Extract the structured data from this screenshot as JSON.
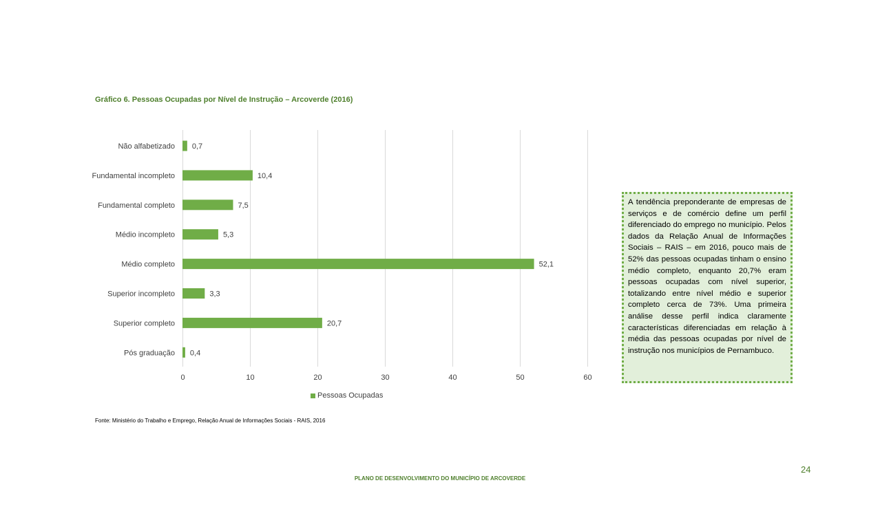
{
  "chart_data": {
    "type": "bar",
    "orientation": "horizontal",
    "title": "Gráfico 6. Pessoas Ocupadas por Nível de Instrução – Arcoverde (2016)",
    "categories": [
      "Não alfabetizado",
      "Fundamental incompleto",
      "Fundamental completo",
      "Médio incompleto",
      "Médio completo",
      "Superior incompleto",
      "Superior completo",
      "Pós graduação"
    ],
    "series": [
      {
        "name": "Pessoas Ocupadas",
        "values": [
          0.7,
          10.4,
          7.5,
          5.3,
          52.1,
          3.3,
          20.7,
          0.4
        ],
        "labels": [
          "0,7",
          "10,4",
          "7,5",
          "5,3",
          "52,1",
          "3,3",
          "20,7",
          "0,4"
        ],
        "color": "#70ad47"
      }
    ],
    "xlim": [
      0,
      60
    ],
    "xticks": [
      0,
      10,
      20,
      30,
      40,
      50,
      60
    ],
    "xlabel": "",
    "ylabel": "",
    "grid": true,
    "legend_position": "bottom"
  },
  "source": "Fonte: Ministério do Trabalho e Emprego, Relação Anual de Informações Sociais - RAIS, 2016",
  "textbox": "A tendência preponderante de empresas de serviços e de comércio define um perfil diferenciado do emprego no município. Pelos dados da Relação Anual de Informações Sociais – RAIS – em 2016, pouco mais de 52% das pessoas ocupadas tinham o ensino médio completo, enquanto 20,7% eram pessoas ocupadas com nível superior, totalizando entre nível médio e superior completo cerca de 73%. Uma primeira análise desse perfil indica claramente características diferenciadas em relação à média das pessoas ocupadas por nível de instrução nos municípios de Pernambuco.",
  "page_number": "24",
  "footer": "PLANO DE DESENVOLVIMENTO DO MUNICÍPIO DE ARCOVERDE",
  "colors": {
    "accent": "#70ad47",
    "title": "#4e7f2c",
    "textbox_bg": "#e2efda"
  }
}
